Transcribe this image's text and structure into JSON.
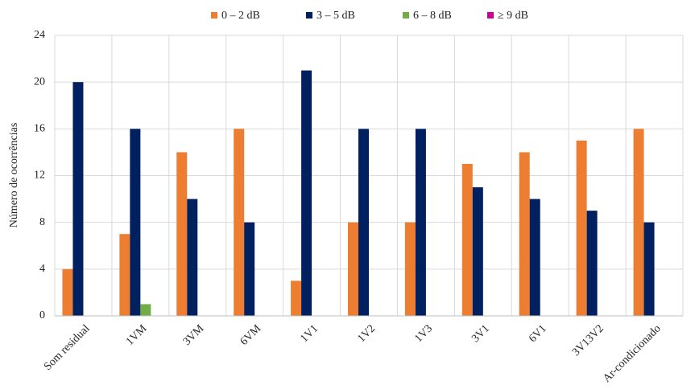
{
  "chart_data": {
    "type": "bar",
    "categories": [
      "Som residual",
      "1VM",
      "3VM",
      "6VM",
      "1V1",
      "1V2",
      "1V3",
      "3V1",
      "6V1",
      "3V13V2",
      "Ar-condicionado"
    ],
    "series": [
      {
        "name": "0 – 2 dB",
        "color": "#ed7d31",
        "values": [
          4,
          7,
          14,
          16,
          3,
          8,
          8,
          13,
          14,
          15,
          16
        ]
      },
      {
        "name": "3 – 5 dB",
        "color": "#002060",
        "values": [
          20,
          16,
          10,
          8,
          21,
          16,
          16,
          11,
          10,
          9,
          8
        ]
      },
      {
        "name": "6 – 8 dB",
        "color": "#70ad47",
        "values": [
          0,
          1,
          0,
          0,
          0,
          0,
          0,
          0,
          0,
          0,
          0
        ]
      },
      {
        "name": "≥ 9 dB",
        "color": "#cc0099",
        "values": [
          0,
          0,
          0,
          0,
          0,
          0,
          0,
          0,
          0,
          0,
          0
        ]
      }
    ],
    "y_label": "Número de ocorrências",
    "ylim": [
      0,
      24
    ],
    "yticks": [
      0,
      4,
      8,
      12,
      16,
      20,
      24
    ],
    "grid": true,
    "legend": "top"
  }
}
